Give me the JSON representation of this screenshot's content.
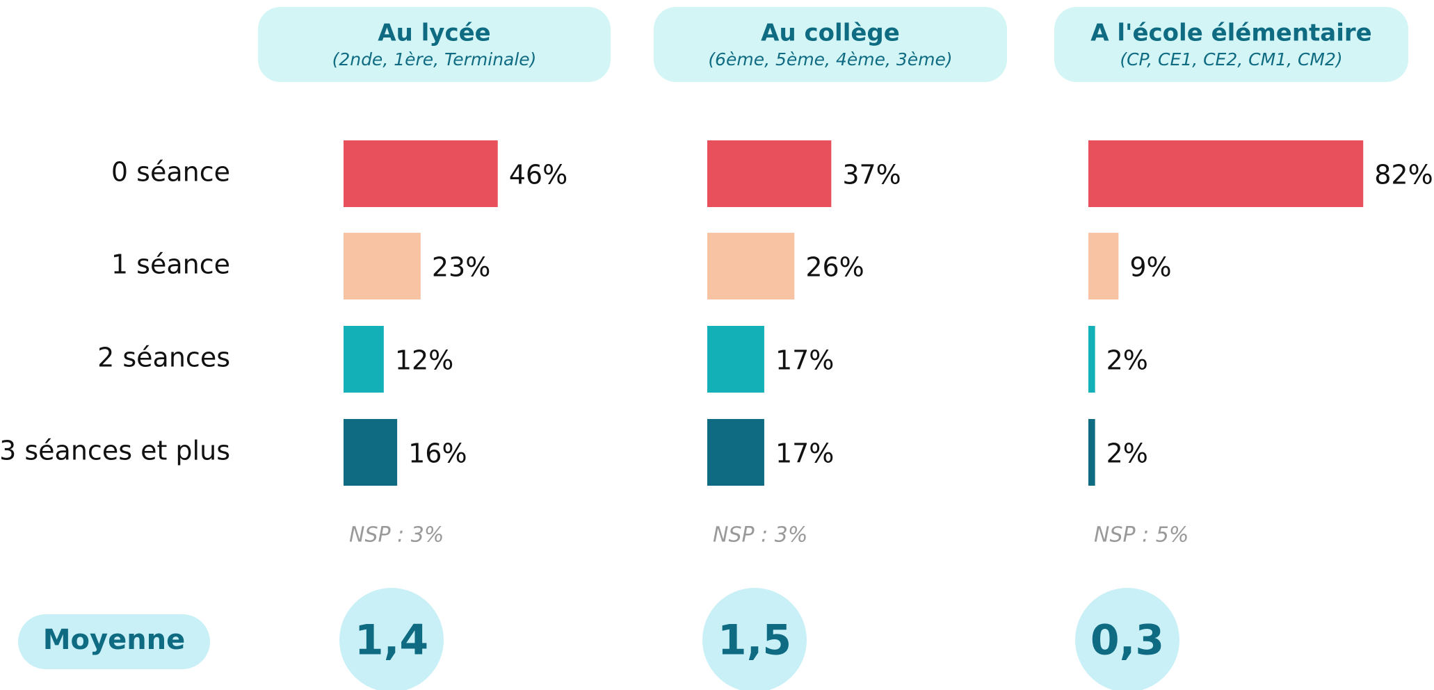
{
  "chart_data": [
    {
      "type": "bar",
      "orientation": "horizontal",
      "title": "Au lycée",
      "subtitle": "(2nde, 1ère, Terminale)",
      "categories": [
        "0 séance",
        "1 séance",
        "2 séances",
        "3 séances et plus"
      ],
      "values": [
        46,
        23,
        12,
        16
      ],
      "value_labels": [
        "46%",
        "23%",
        "12%",
        "16%"
      ],
      "colors": [
        "#e8505b",
        "#f7c3a2",
        "#14b0b8",
        "#0e6b82"
      ],
      "xlim": [
        0,
        100
      ],
      "note": "NSP : 3%",
      "mean": "1,4"
    },
    {
      "type": "bar",
      "orientation": "horizontal",
      "title": "Au collège",
      "subtitle": "(6ème, 5ème, 4ème, 3ème)",
      "values": [
        37,
        26,
        17,
        17
      ],
      "value_labels": [
        "37%",
        "26%",
        "17%",
        "17%"
      ],
      "colors": [
        "#e8505b",
        "#f7c3a2",
        "#14b0b8",
        "#0e6b82"
      ],
      "xlim": [
        0,
        100
      ],
      "note": "NSP : 3%",
      "mean": "1,5"
    },
    {
      "type": "bar",
      "orientation": "horizontal",
      "title": "A l'école élémentaire",
      "subtitle": "(CP, CE1, CE2, CM1, CM2)",
      "values": [
        82,
        9,
        2,
        2
      ],
      "value_labels": [
        "82%",
        "9%",
        "2%",
        "2%"
      ],
      "colors": [
        "#e8505b",
        "#f7c3a2",
        "#14b0b8",
        "#0e6b82"
      ],
      "xlim": [
        0,
        100
      ],
      "note": "NSP : 5%",
      "mean": "0,3"
    }
  ],
  "mean_label": "Moyenne"
}
